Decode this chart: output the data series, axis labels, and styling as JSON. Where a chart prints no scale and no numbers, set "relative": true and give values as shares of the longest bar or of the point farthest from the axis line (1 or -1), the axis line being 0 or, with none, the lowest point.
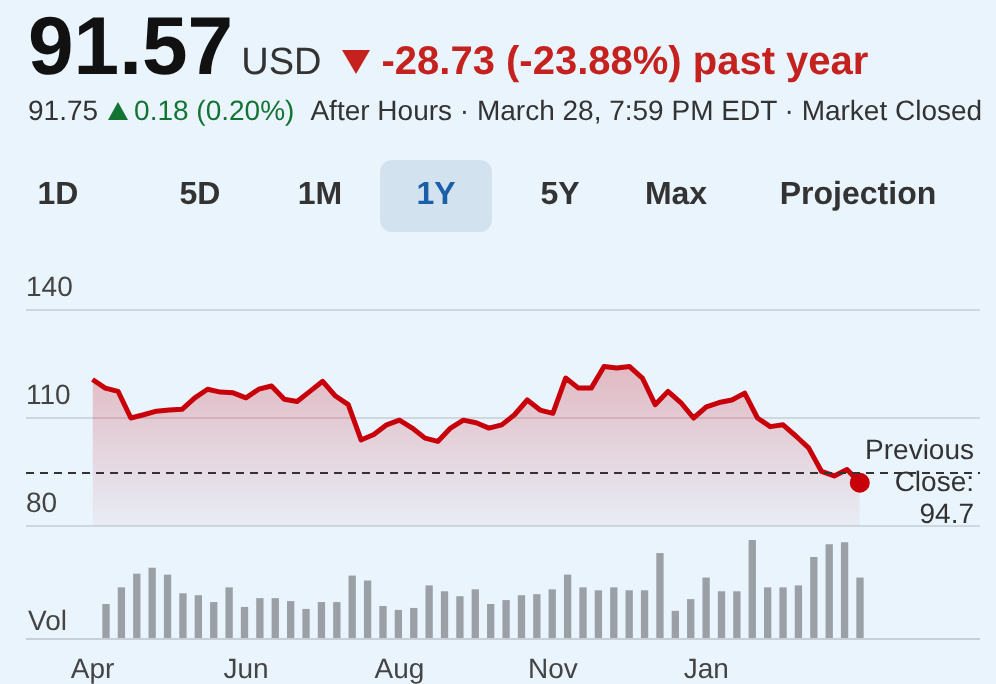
{
  "chart_data": [
    {
      "type": "area",
      "title": "91.57",
      "annotations": [
        "USD",
        "-28.73 (-23.88%) past year",
        "91.75",
        "0.18 (0.20%)",
        "After Hours · March 28, 7:59 PM EDT · Market Closed",
        "1D",
        "5D",
        "1M",
        "1Y",
        "5Y",
        "Max",
        "Projection"
      ],
      "categories": [
        "Apr",
        null,
        null,
        null,
        null,
        null,
        null,
        null,
        null,
        null,
        null,
        null,
        "Jun",
        null,
        null,
        null,
        null,
        null,
        null,
        null,
        null,
        null,
        null,
        null,
        "Aug",
        null,
        null,
        null,
        null,
        null,
        null,
        null,
        null,
        null,
        null,
        null,
        "Nov",
        null,
        null,
        null,
        null,
        null,
        null,
        null,
        null,
        null,
        null,
        null,
        "Jan",
        null,
        null,
        null,
        null,
        null,
        null,
        null,
        null,
        null,
        null,
        null,
        null
      ],
      "series": [
        {
          "color": "#c8000a",
          "values": [
            120.7,
            118.3,
            117.4,
            110,
            110.9,
            111.9,
            112.2,
            112.4,
            115.6,
            118,
            117.2,
            117,
            115.6,
            118,
            118.9,
            115.2,
            114.6,
            117.4,
            120.2,
            116.1,
            113.7,
            103.9,
            105.4,
            108.1,
            109.4,
            107.2,
            104.4,
            103.5,
            107.2,
            109.4,
            108.7,
            107.2,
            108.1,
            110.9,
            115,
            112.2,
            111.3,
            121.1,
            118.3,
            118.3,
            124.3,
            123.9,
            124.3,
            121.1,
            113.7,
            117.4,
            114.3,
            110,
            113.1,
            114.3,
            115,
            116.9,
            110,
            107.6,
            108.1,
            105,
            101.7,
            95.2,
            93.9,
            95.7,
            92
          ]
        }
      ],
      "ylim": [
        80,
        140
      ],
      "yticks": [
        80,
        110,
        140
      ],
      "grid": "y",
      "ref_lines": [
        {
          "axis": "y",
          "value": 94.7,
          "label": "Previous Close: 94.7",
          "color": "#333333",
          "line_style": "dashed"
        }
      ]
    },
    {
      "type": "bar",
      "relative": true,
      "ylabel": "Vol",
      "color": "#9aa0a6",
      "categories": [
        null,
        null,
        null,
        null,
        null,
        null,
        null,
        null,
        null,
        null,
        null,
        null,
        null,
        null,
        null,
        null,
        null,
        null,
        null,
        null,
        null,
        null,
        null,
        null,
        null,
        null,
        null,
        null,
        null,
        null,
        null,
        null,
        null,
        null,
        null,
        null,
        null,
        null,
        null,
        null,
        null,
        null,
        null,
        null,
        null,
        null,
        null,
        null,
        null,
        null
      ],
      "values": [
        0.34,
        0.51,
        0.65,
        0.71,
        0.64,
        0.45,
        0.43,
        0.36,
        0.51,
        0.31,
        0.4,
        0.4,
        0.37,
        0.29,
        0.36,
        0.36,
        0.63,
        0.58,
        0.32,
        0.28,
        0.3,
        0.53,
        0.47,
        0.42,
        0.49,
        0.34,
        0.38,
        0.43,
        0.44,
        0.49,
        0.64,
        0.51,
        0.48,
        0.51,
        0.48,
        0.48,
        0.86,
        0.27,
        0.39,
        0.61,
        0.47,
        0.47,
        1,
        0.51,
        0.51,
        0.53,
        0.82,
        0.95,
        0.97,
        0.61
      ],
      "tick_labels": false
    }
  ]
}
